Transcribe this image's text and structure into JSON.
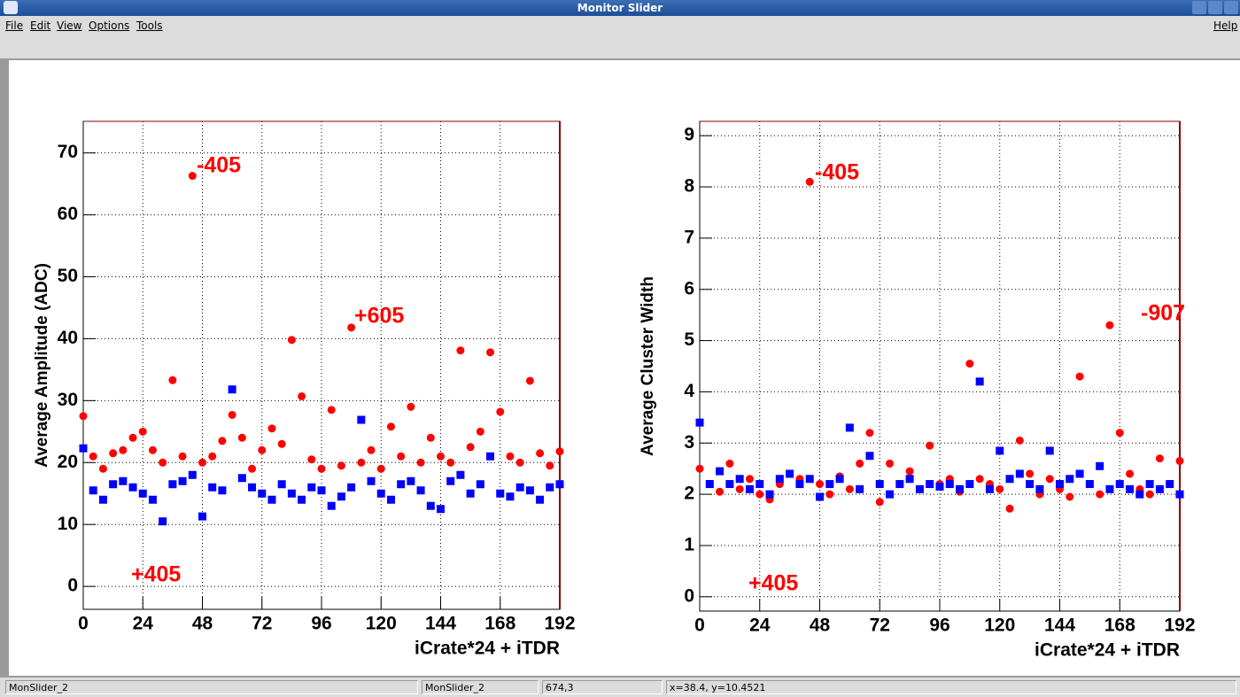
{
  "window": {
    "title": "Monitor Slider"
  },
  "menu": {
    "items": [
      "File",
      "Edit",
      "View",
      "Options",
      "Tools"
    ],
    "help": "Help"
  },
  "status_bar": {
    "fields": [
      "MonSlider_2",
      "MonSlider_2",
      "674,3",
      "x=38.4, y=10.4521"
    ]
  },
  "chart_data": [
    {
      "type": "scatter",
      "y_label": "Average Amplitude (ADC)",
      "x_label": "iCrate*24 + iTDR",
      "x": [
        0,
        4,
        8,
        12,
        16,
        20,
        24,
        28,
        32,
        36,
        40,
        44,
        48,
        52,
        56,
        60,
        64,
        68,
        72,
        76,
        80,
        84,
        88,
        92,
        96,
        100,
        104,
        108,
        112,
        116,
        120,
        124,
        128,
        132,
        136,
        140,
        144,
        148,
        152,
        156,
        160,
        164,
        168,
        172,
        176,
        180,
        184,
        188,
        192
      ],
      "series": [
        {
          "color": "#ff0000",
          "marker": "circle",
          "values": [
            27.5,
            21,
            19,
            21.5,
            22,
            24,
            25,
            22,
            20,
            33.3,
            21,
            66.3,
            20,
            21,
            23.5,
            27.7,
            24,
            19,
            22,
            25.5,
            23,
            39.8,
            30.7,
            20.5,
            19,
            28.5,
            19.5,
            41.8,
            20,
            22,
            19,
            25.8,
            21,
            29,
            20,
            24,
            21,
            20,
            38.1,
            22.5,
            25,
            37.8,
            28.2,
            21,
            20,
            33.2,
            21.5,
            19.5,
            21.8
          ]
        },
        {
          "color": "#0000ff",
          "marker": "square",
          "values": [
            22.3,
            15.5,
            14,
            16.5,
            17,
            16,
            15,
            14,
            10.5,
            16.5,
            17,
            18,
            11.3,
            16,
            15.5,
            31.8,
            17.5,
            16,
            15,
            14,
            16.5,
            15,
            14,
            16,
            15.5,
            13,
            14.5,
            16,
            26.9,
            17,
            15,
            14,
            16.5,
            17,
            15.5,
            13,
            12.5,
            17,
            18,
            15,
            16.5,
            21,
            15,
            14.5,
            16,
            15.5,
            14,
            16,
            16.5
          ]
        }
      ],
      "annotations": [
        "-405",
        "+605",
        "+405"
      ],
      "xlim": [
        0,
        192
      ],
      "xticks": [
        0,
        24,
        48,
        72,
        96,
        120,
        144,
        168,
        192
      ],
      "ylim": [
        -3.7,
        75.1
      ],
      "yticks": [
        0,
        10,
        20,
        30,
        40,
        50,
        60,
        70
      ],
      "grid": true
    },
    {
      "type": "scatter",
      "y_label": "Average Cluster Width",
      "x_label": "iCrate*24 + iTDR",
      "x": [
        0,
        4,
        8,
        12,
        16,
        20,
        24,
        28,
        32,
        36,
        40,
        44,
        48,
        52,
        56,
        60,
        64,
        68,
        72,
        76,
        80,
        84,
        88,
        92,
        96,
        100,
        104,
        108,
        112,
        116,
        120,
        124,
        128,
        132,
        136,
        140,
        144,
        148,
        152,
        156,
        160,
        164,
        168,
        172,
        176,
        180,
        184,
        188,
        192
      ],
      "series": [
        {
          "color": "#ff0000",
          "marker": "circle",
          "values": [
            2.5,
            2.2,
            2.05,
            2.6,
            2.1,
            2.3,
            2.0,
            1.9,
            2.2,
            2.4,
            2.3,
            8.1,
            2.2,
            2.0,
            2.35,
            2.1,
            2.6,
            3.2,
            1.85,
            2.6,
            2.2,
            2.45,
            2.1,
            2.95,
            2.2,
            2.3,
            2.05,
            4.55,
            2.3,
            2.2,
            2.1,
            1.72,
            3.05,
            2.4,
            2.0,
            2.3,
            2.1,
            1.95,
            4.3,
            2.2,
            2.0,
            5.3,
            3.2,
            2.4,
            2.1,
            2.0,
            2.7,
            2.2,
            2.65
          ]
        },
        {
          "color": "#0000ff",
          "marker": "square",
          "values": [
            3.4,
            2.2,
            2.45,
            2.2,
            2.3,
            2.1,
            2.2,
            2.0,
            2.3,
            2.4,
            2.2,
            2.3,
            1.95,
            2.2,
            2.3,
            3.3,
            2.1,
            2.75,
            2.2,
            2.0,
            2.2,
            2.3,
            2.1,
            2.2,
            2.15,
            2.2,
            2.1,
            2.2,
            4.2,
            2.1,
            2.85,
            2.3,
            2.4,
            2.2,
            2.1,
            2.85,
            2.2,
            2.3,
            2.4,
            2.2,
            2.55,
            2.1,
            2.2,
            2.1,
            2.0,
            2.2,
            2.1,
            2.2,
            2.0
          ]
        }
      ],
      "annotations": [
        "-405",
        "-907",
        "+405"
      ],
      "xlim": [
        0,
        192
      ],
      "xticks": [
        0,
        24,
        48,
        72,
        96,
        120,
        144,
        168,
        192
      ],
      "ylim": [
        -0.28,
        9.28
      ],
      "yticks": [
        0,
        1,
        2,
        3,
        4,
        5,
        6,
        7,
        8,
        9
      ],
      "grid": true
    }
  ]
}
